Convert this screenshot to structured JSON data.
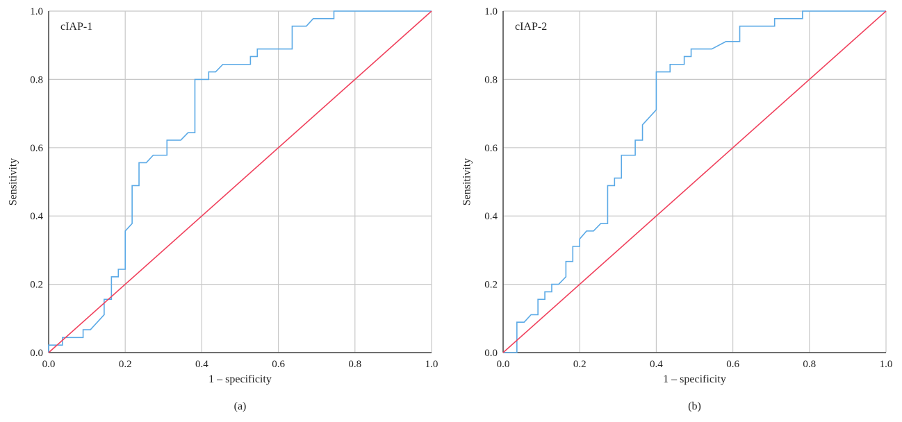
{
  "colors": {
    "roc": "#5aa9e6",
    "reference": "#f0405c",
    "grid": "#c8c8c8",
    "axis": "#444444"
  },
  "chart_data": [
    {
      "type": "line",
      "caption": "(a)",
      "inset_label": "cIAP-1",
      "xlabel": "1 – specificity",
      "ylabel": "Sensitivity",
      "xlim": [
        0,
        1
      ],
      "ylim": [
        0,
        1
      ],
      "xticks": [
        "0.0",
        "0.2",
        "0.4",
        "0.6",
        "0.8",
        "1.0"
      ],
      "yticks": [
        "0.0",
        "0.2",
        "0.4",
        "0.6",
        "0.8",
        "1.0"
      ],
      "grid": true,
      "series": [
        {
          "role": "roc",
          "step": true,
          "x": [
            0.0,
            0.0,
            0.036,
            0.036,
            0.09,
            0.09,
            0.109,
            0.145,
            0.145,
            0.164,
            0.164,
            0.182,
            0.182,
            0.2,
            0.2,
            0.218,
            0.218,
            0.236,
            0.236,
            0.255,
            0.273,
            0.309,
            0.309,
            0.345,
            0.364,
            0.382,
            0.382,
            0.418,
            0.418,
            0.436,
            0.455,
            0.527,
            0.527,
            0.545,
            0.545,
            0.636,
            0.636,
            0.673,
            0.691,
            0.745,
            0.745,
            1.0
          ],
          "y": [
            0.0,
            0.022,
            0.022,
            0.044,
            0.044,
            0.067,
            0.067,
            0.111,
            0.156,
            0.156,
            0.222,
            0.222,
            0.244,
            0.244,
            0.356,
            0.378,
            0.489,
            0.489,
            0.556,
            0.556,
            0.578,
            0.578,
            0.622,
            0.622,
            0.644,
            0.644,
            0.8,
            0.8,
            0.822,
            0.822,
            0.844,
            0.844,
            0.867,
            0.867,
            0.889,
            0.889,
            0.956,
            0.956,
            0.978,
            0.978,
            1.0,
            1.0
          ]
        },
        {
          "role": "reference",
          "x": [
            0,
            1
          ],
          "y": [
            0,
            1
          ]
        }
      ]
    },
    {
      "type": "line",
      "caption": "(b)",
      "inset_label": "cIAP-2",
      "xlabel": "1 – specificity",
      "ylabel": "Sensitivity",
      "xlim": [
        0,
        1
      ],
      "ylim": [
        0,
        1
      ],
      "xticks": [
        "0.0",
        "0.2",
        "0.4",
        "0.6",
        "0.8",
        "1.0"
      ],
      "yticks": [
        "0.0",
        "0.2",
        "0.4",
        "0.6",
        "0.8",
        "1.0"
      ],
      "grid": true,
      "series": [
        {
          "role": "roc",
          "step": true,
          "x": [
            0.0,
            0.036,
            0.036,
            0.055,
            0.073,
            0.091,
            0.091,
            0.109,
            0.109,
            0.127,
            0.127,
            0.145,
            0.164,
            0.164,
            0.182,
            0.182,
            0.2,
            0.2,
            0.218,
            0.236,
            0.255,
            0.273,
            0.273,
            0.291,
            0.291,
            0.309,
            0.309,
            0.327,
            0.327,
            0.345,
            0.345,
            0.364,
            0.364,
            0.4,
            0.4,
            0.436,
            0.436,
            0.473,
            0.473,
            0.491,
            0.491,
            0.545,
            0.582,
            0.618,
            0.618,
            0.709,
            0.709,
            0.782,
            0.782,
            1.0
          ],
          "y": [
            0.0,
            0.0,
            0.089,
            0.089,
            0.111,
            0.111,
            0.156,
            0.156,
            0.178,
            0.178,
            0.2,
            0.2,
            0.222,
            0.267,
            0.267,
            0.311,
            0.311,
            0.333,
            0.356,
            0.356,
            0.378,
            0.378,
            0.489,
            0.489,
            0.511,
            0.511,
            0.578,
            0.578,
            0.578,
            0.578,
            0.622,
            0.622,
            0.667,
            0.711,
            0.822,
            0.822,
            0.844,
            0.844,
            0.867,
            0.867,
            0.889,
            0.889,
            0.911,
            0.911,
            0.956,
            0.956,
            0.978,
            0.978,
            1.0,
            1.0
          ]
        },
        {
          "role": "reference",
          "x": [
            0,
            1
          ],
          "y": [
            0,
            1
          ]
        }
      ]
    }
  ]
}
